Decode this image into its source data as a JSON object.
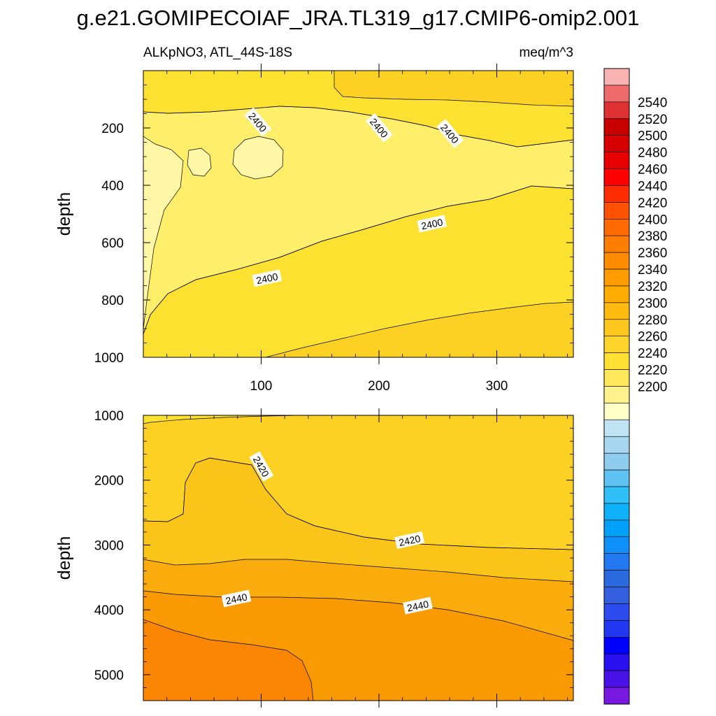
{
  "title": "g.e21.GOMIPECOIAF_JRA.TL319_g17.CMIP6-omip2.001",
  "subtitle_left": "ALKpNO3, ATL_44S-18S",
  "subtitle_right": "meq/m^3",
  "chart_data": [
    {
      "type": "contour",
      "panel": "upper",
      "title": "ALKpNO3, ATL_44S-18S",
      "units": "meq/m^3",
      "xlabel": "",
      "ylabel": "depth",
      "xlim": [
        0,
        365
      ],
      "ylim": [
        1000,
        0
      ],
      "xticks": [
        100,
        200,
        300
      ],
      "yticks": [
        200,
        400,
        600,
        800,
        1000
      ],
      "contour_labels": [
        {
          "text": "2400",
          "x": 97,
          "y": 180
        },
        {
          "text": "2400",
          "x": 200,
          "y": 200
        },
        {
          "text": "2400",
          "x": 260,
          "y": 220
        },
        {
          "text": "2400",
          "x": 245,
          "y": 535
        },
        {
          "text": "2400",
          "x": 105,
          "y": 725
        }
      ]
    },
    {
      "type": "contour",
      "panel": "lower",
      "xlabel": "",
      "ylabel": "depth",
      "xlim": [
        0,
        365
      ],
      "ylim": [
        5400,
        1000
      ],
      "yticks": [
        1000,
        2000,
        3000,
        4000,
        5000
      ],
      "contour_labels": [
        {
          "text": "2420",
          "x": 100,
          "y": 1790
        },
        {
          "text": "2420",
          "x": 226,
          "y": 2930
        },
        {
          "text": "2440",
          "x": 79,
          "y": 3830
        },
        {
          "text": "2440",
          "x": 233,
          "y": 3940
        }
      ]
    }
  ],
  "colorbar": {
    "tick_labels": [
      "2540",
      "2520",
      "2500",
      "2480",
      "2460",
      "2440",
      "2420",
      "2400",
      "2380",
      "2360",
      "2340",
      "2320",
      "2300",
      "2280",
      "2260",
      "2240",
      "2220",
      "2200"
    ],
    "colors": [
      "#f9b2b2",
      "#ed6b6b",
      "#de3131",
      "#c80000",
      "#d60000",
      "#e80000",
      "#ff0000",
      "#ff2c00",
      "#ff5200",
      "#ff6a00",
      "#ff7d00",
      "#ff8c00",
      "#ff9c00",
      "#ffab00",
      "#ffbb10",
      "#ffc81f",
      "#ffd42a",
      "#ffe033",
      "#ffe95a",
      "#fff28c",
      "#ffffc8",
      "#bfe3f3",
      "#a8d8f0",
      "#8ecdf0",
      "#5ec3f3",
      "#2fc0f8",
      "#0fb2f8",
      "#00a0f8",
      "#0f90f8",
      "#2278f0",
      "#2a6ae0",
      "#3460e0",
      "#2c4cf0",
      "#2038f0",
      "#0000ff",
      "#2a10ee",
      "#4812e6",
      "#7818e0"
    ]
  },
  "palette": {
    "c2380": "#fff6a6",
    "c2390": "#ffee6a",
    "c2400": "#fde130",
    "c2410": "#fcd124",
    "c2420": "#fbc418",
    "c2430": "#faac0c",
    "c2440": "#f99a02",
    "c2450": "#fb8603"
  }
}
